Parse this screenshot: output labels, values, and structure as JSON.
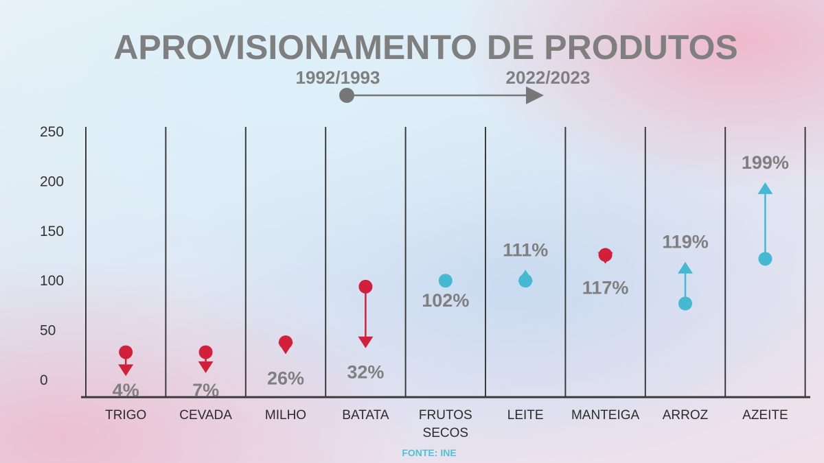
{
  "chart_data": {
    "type": "scatter",
    "title": "APROVISIONAMENTO DE PRODUTOS",
    "period": {
      "start": "1992/1993",
      "end": "2022/2023"
    },
    "ylim": [
      0,
      250
    ],
    "yticks": [
      0,
      50,
      100,
      150,
      200,
      250
    ],
    "grid": "vertical",
    "categories": [
      "TRIGO",
      "CEVADA",
      "MILHO",
      "BATATA",
      "FRUTOS SECOS",
      "LEITE",
      "MANTEIGA",
      "ARROZ",
      "AZEITE"
    ],
    "series": [
      {
        "values": [
          28,
          28,
          38,
          94,
          100,
          100,
          126,
          77,
          122
        ]
      },
      {
        "values": [
          4,
          7,
          26,
          32,
          102,
          111,
          117,
          119,
          199
        ]
      }
    ],
    "labels": [
      "4%",
      "7%",
      "26%",
      "32%",
      "102%",
      "111%",
      "117%",
      "119%",
      "199%"
    ],
    "colors": {
      "decrease": "#d21f3c",
      "increase": "#45b8d2",
      "text": "#7f7f7f",
      "axis": "#3a3a3a"
    },
    "source": "FONTE: INE"
  }
}
